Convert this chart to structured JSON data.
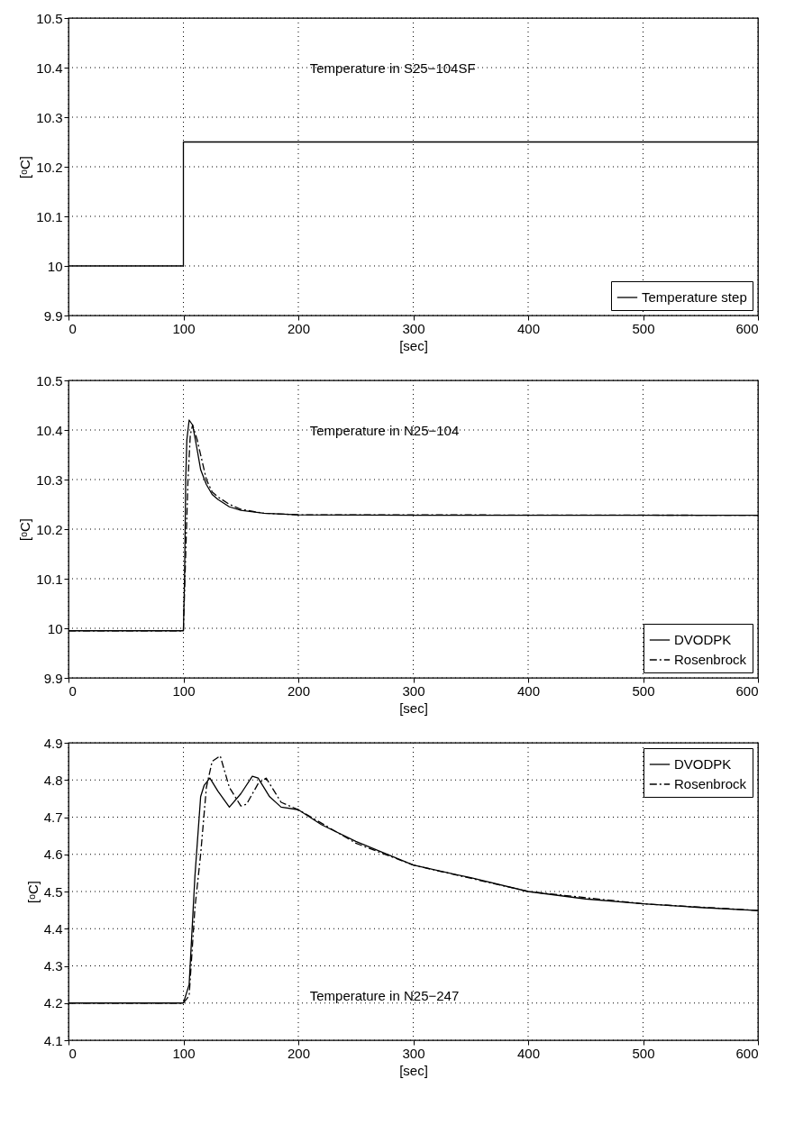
{
  "chart_data": [
    {
      "type": "step",
      "xlabel": "[sec]",
      "ylabel": "[ᵒC]",
      "annotations": [
        "Temperature in S25−104SF"
      ],
      "x": [
        0,
        100,
        600
      ],
      "series": [
        {
          "name": "Temperature step",
          "color": "#000000",
          "line_style": "solid",
          "values": [
            10,
            10.25,
            10.25
          ]
        }
      ],
      "xlim": [
        0,
        600
      ],
      "xticks": [
        0,
        100,
        200,
        300,
        400,
        500,
        600
      ],
      "ylim": [
        9.9,
        10.5
      ],
      "yticks": [
        9.9,
        10,
        10.1,
        10.2,
        10.3,
        10.4,
        10.5
      ],
      "grid": true,
      "legend": "bottom right"
    },
    {
      "type": "line",
      "xlabel": "[sec]",
      "ylabel": "[ᵒC]",
      "annotations": [
        "Temperature in N25−104"
      ],
      "series": [
        {
          "name": "DVODPK",
          "color": "#000000",
          "line_style": "solid",
          "x": [
            0,
            100,
            101,
            102,
            103,
            105,
            108,
            112,
            115,
            120,
            125,
            130,
            140,
            150,
            170,
            200,
            300,
            600
          ],
          "values": [
            9.995,
            9.995,
            10.1,
            10.3,
            10.38,
            10.42,
            10.41,
            10.36,
            10.32,
            10.29,
            10.27,
            10.26,
            10.245,
            10.238,
            10.232,
            10.229,
            10.228,
            10.228
          ]
        },
        {
          "name": "Rosenbrock",
          "color": "#000000",
          "line_style": "dashed",
          "x": [
            0,
            100,
            102,
            104,
            106,
            108,
            112,
            116,
            120,
            125,
            130,
            140,
            150,
            170,
            200,
            600
          ],
          "values": [
            9.995,
            9.995,
            10.15,
            10.3,
            10.39,
            10.41,
            10.38,
            10.34,
            10.3,
            10.275,
            10.265,
            10.25,
            10.24,
            10.232,
            10.229,
            10.228
          ]
        }
      ],
      "xlim": [
        0,
        600
      ],
      "xticks": [
        0,
        100,
        200,
        300,
        400,
        500,
        600
      ],
      "ylim": [
        9.9,
        10.5
      ],
      "yticks": [
        9.9,
        10,
        10.1,
        10.2,
        10.3,
        10.4,
        10.5
      ],
      "grid": true,
      "legend": "bottom right"
    },
    {
      "type": "line",
      "xlabel": "[sec]",
      "ylabel": "[ᵒC]",
      "annotations": [
        "Temperature in N25−247"
      ],
      "series": [
        {
          "name": "DVODPK",
          "color": "#000000",
          "line_style": "solid",
          "x": [
            0,
            100,
            105,
            110,
            115,
            118,
            123,
            130,
            140,
            150,
            160,
            165,
            175,
            185,
            200,
            220,
            250,
            300,
            350,
            400,
            450,
            500,
            550,
            600
          ],
          "values": [
            4.2,
            4.2,
            4.25,
            4.54,
            4.755,
            4.785,
            4.805,
            4.77,
            4.727,
            4.763,
            4.81,
            4.805,
            4.755,
            4.727,
            4.72,
            4.68,
            4.635,
            4.571,
            4.537,
            4.5,
            4.48,
            4.467,
            4.457,
            4.449
          ]
        },
        {
          "name": "Rosenbrock",
          "color": "#000000",
          "line_style": "dashed",
          "x": [
            0,
            100,
            105,
            110,
            115,
            120,
            125,
            132,
            140,
            150,
            155,
            165,
            172,
            185,
            200,
            250,
            300,
            400,
            500,
            600
          ],
          "values": [
            4.2,
            4.2,
            4.22,
            4.455,
            4.6,
            4.78,
            4.85,
            4.865,
            4.78,
            4.73,
            4.735,
            4.79,
            4.805,
            4.74,
            4.72,
            4.63,
            4.571,
            4.5,
            4.467,
            4.449
          ]
        }
      ],
      "xlim": [
        0,
        600
      ],
      "xticks": [
        0,
        100,
        200,
        300,
        400,
        500,
        600
      ],
      "ylim": [
        4.1,
        4.9
      ],
      "yticks": [
        4.1,
        4.2,
        4.3,
        4.4,
        4.5,
        4.6,
        4.7,
        4.8,
        4.9
      ],
      "grid": true,
      "legend": "top right"
    }
  ]
}
